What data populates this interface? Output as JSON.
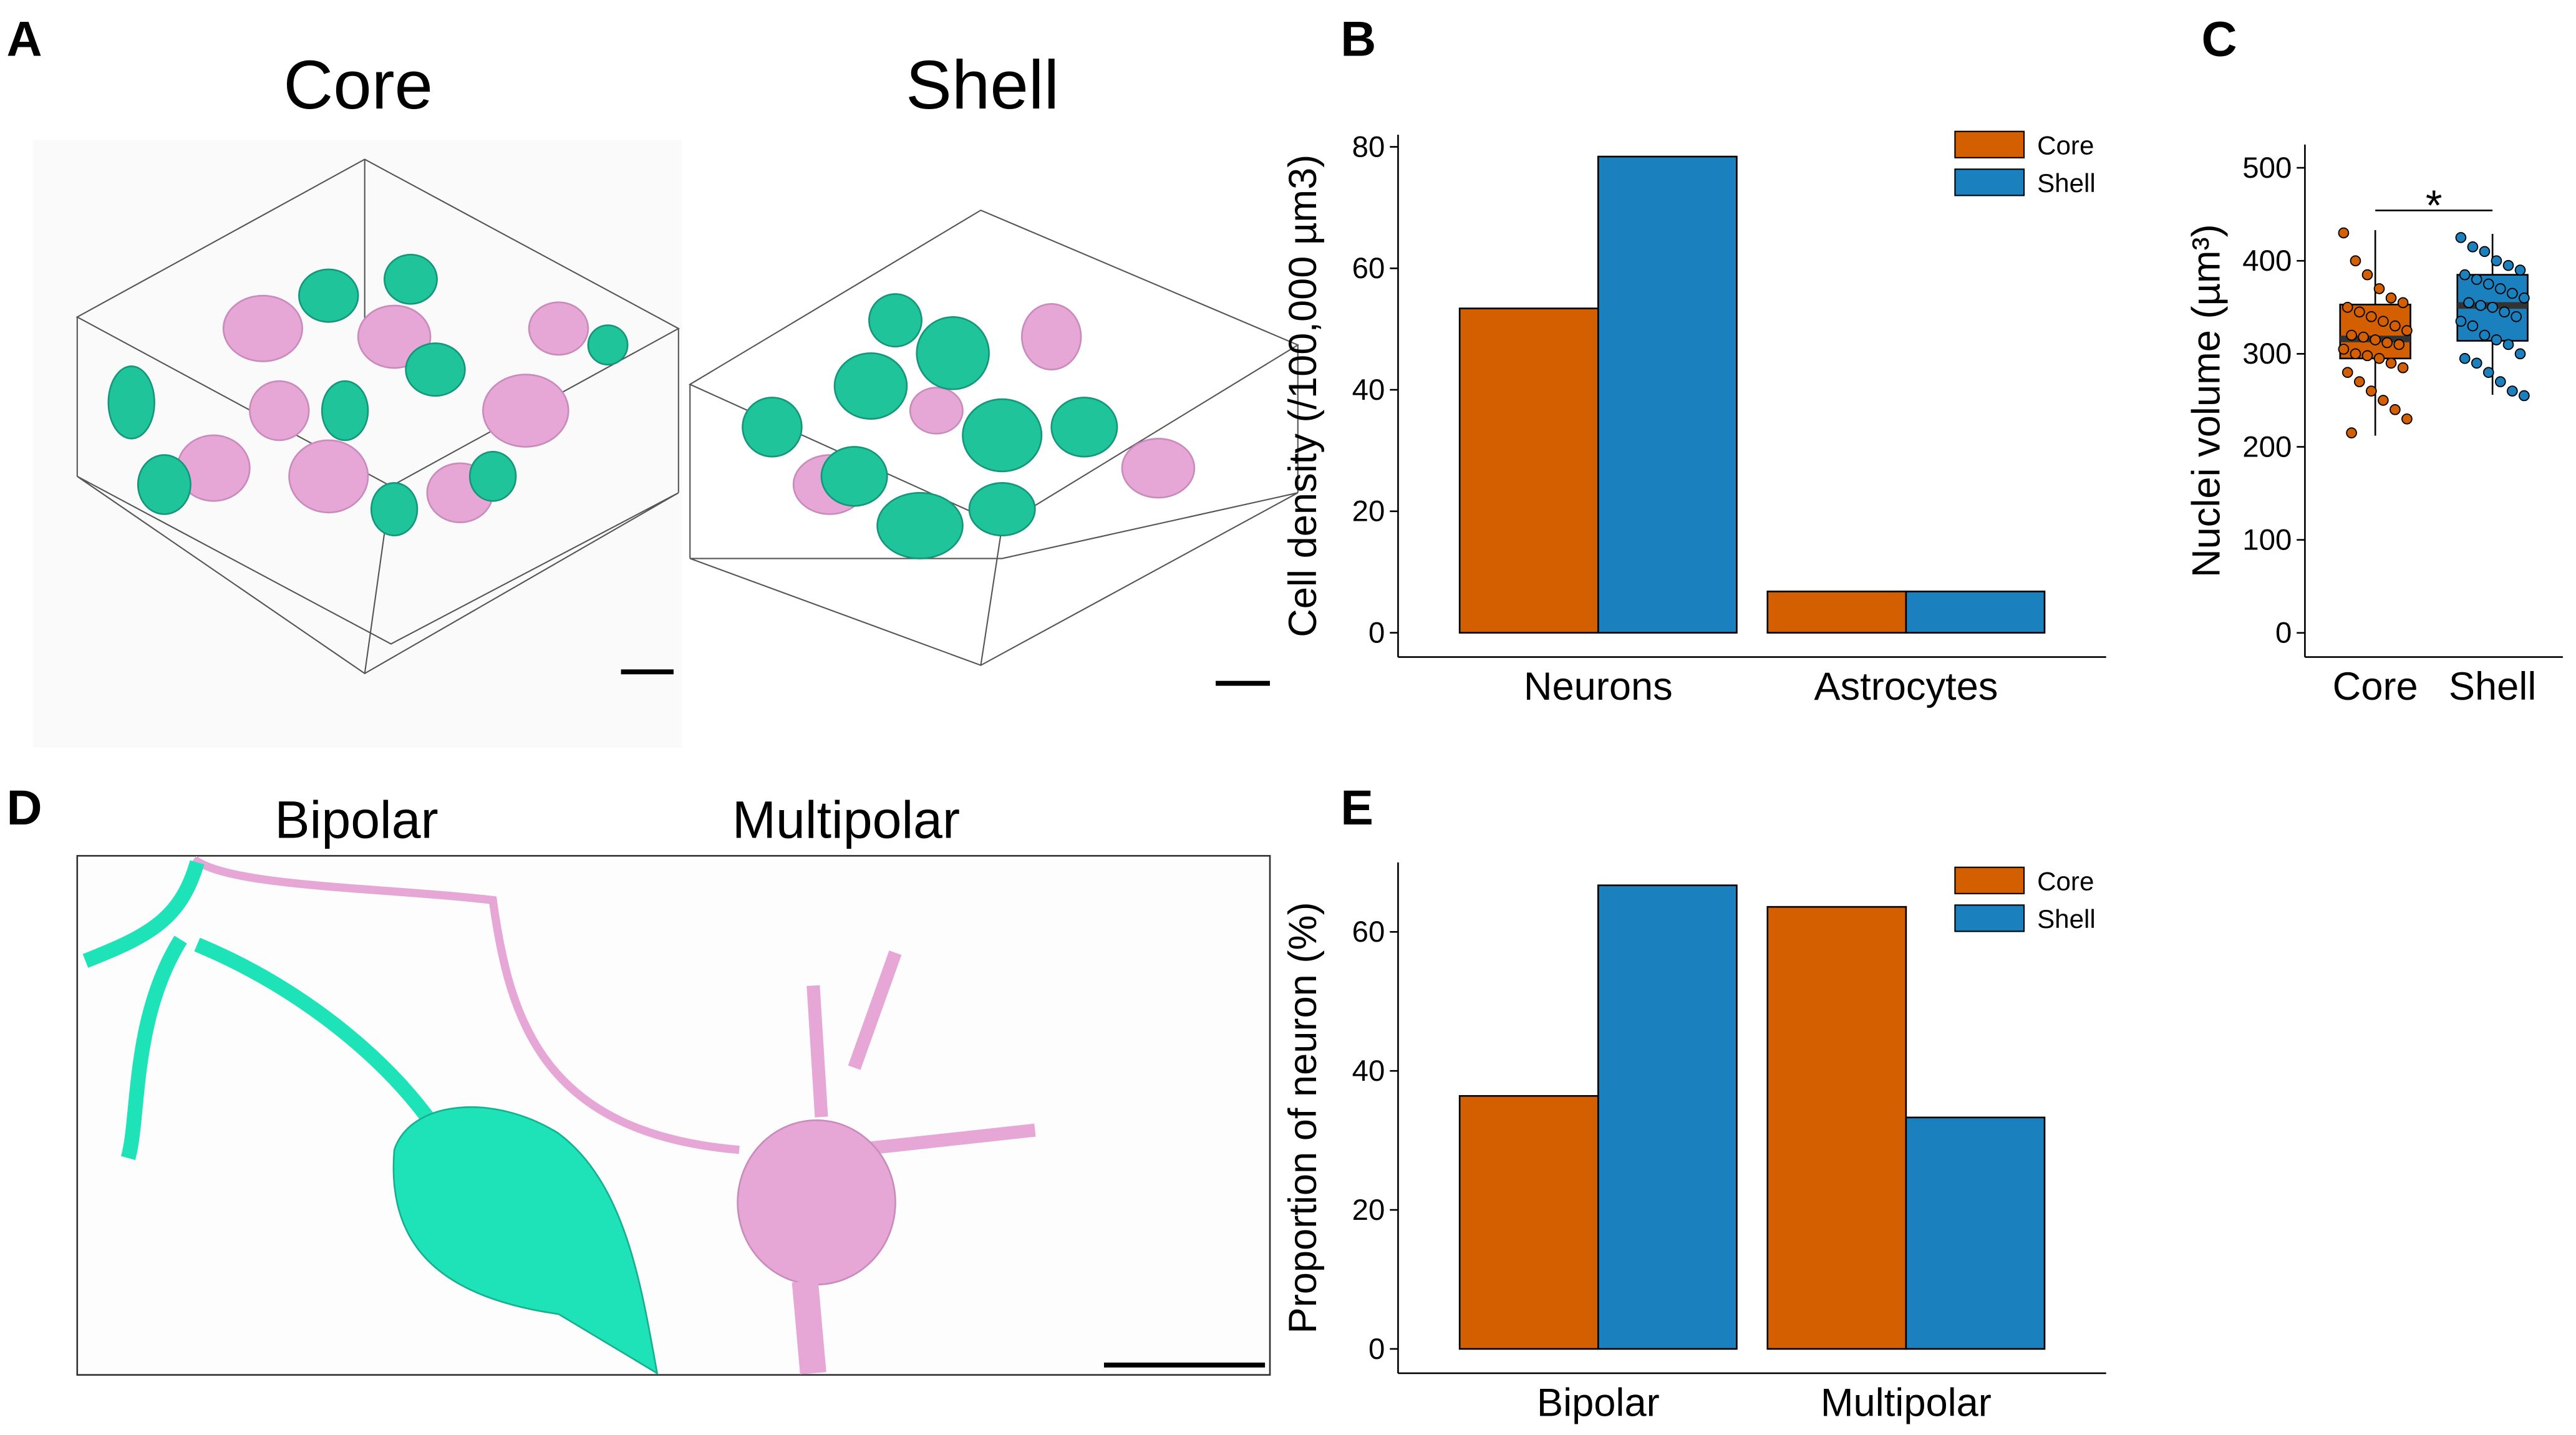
{
  "panel_labels": [
    "A",
    "B",
    "C",
    "D",
    "E"
  ],
  "image_panels": [
    {
      "titles": [
        "Core",
        "Shell"
      ]
    },
    {
      "titles": [
        "Bipolar",
        "Multipolar"
      ]
    }
  ],
  "chart_data": [
    {
      "type": "bar",
      "y_label": "Cell density (/100,000 µm3)",
      "categories": [
        "Neurons",
        "Astrocytes"
      ],
      "series": [
        {
          "name": "Core",
          "color": "#D35F00",
          "values": [
            53.4,
            6.8
          ]
        },
        {
          "name": "Shell",
          "color": "#1B80BE",
          "values": [
            78.4,
            6.8
          ]
        }
      ],
      "ylim": [
        -4,
        82
      ],
      "yticks": [
        0,
        20,
        40,
        60,
        80
      ],
      "legend": "top-right"
    },
    {
      "type": "box",
      "y_label": "Nuclei volume (µm³)",
      "annotation": "*",
      "categories": [
        "Core",
        "Shell"
      ],
      "boxes": [
        {
          "color": "#D35F00",
          "whisker_low": 212,
          "q1": 295,
          "median": 316,
          "q3": 353,
          "whisker_high": 433
        },
        {
          "color": "#1B80BE",
          "whisker_low": 256,
          "q1": 314,
          "median": 352,
          "q3": 385,
          "whisker_high": 429
        }
      ],
      "points": [
        [
          430,
          400,
          385,
          370,
          360,
          355,
          350,
          345,
          340,
          335,
          330,
          325,
          320,
          318,
          315,
          312,
          310,
          305,
          300,
          298,
          295,
          290,
          285,
          280,
          270,
          260,
          250,
          240,
          230,
          215
        ],
        [
          425,
          415,
          410,
          400,
          395,
          390,
          385,
          380,
          375,
          370,
          365,
          360,
          355,
          352,
          350,
          345,
          340,
          335,
          330,
          320,
          315,
          310,
          300,
          295,
          290,
          280,
          270,
          260,
          255
        ]
      ],
      "ylim": [
        -26,
        525
      ],
      "yticks": [
        0,
        100,
        200,
        300,
        400,
        500
      ]
    },
    {
      "type": "bar",
      "y_label": "Proportion of neuron (%)",
      "categories": [
        "Bipolar",
        "Multipolar"
      ],
      "series": [
        {
          "name": "Core",
          "color": "#D35F00",
          "values": [
            36.4,
            63.6
          ]
        },
        {
          "name": "Shell",
          "color": "#1B80BE",
          "values": [
            66.7,
            33.3
          ]
        }
      ],
      "ylim": [
        -3.5,
        70
      ],
      "yticks": [
        0,
        20,
        40,
        60
      ],
      "legend": "top-right"
    }
  ]
}
